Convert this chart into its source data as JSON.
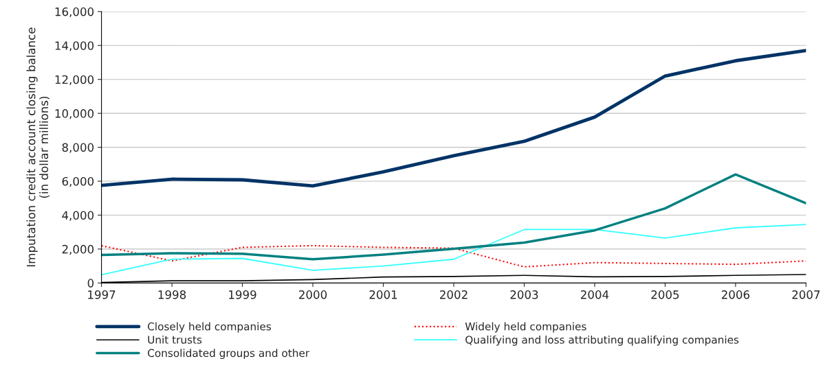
{
  "chart_data": {
    "type": "line",
    "ylabel": "Imputation credit account closing balance\n(in dollar millions)",
    "x": [
      1997,
      1998,
      1999,
      2000,
      2001,
      2002,
      2003,
      2004,
      2005,
      2006,
      2007
    ],
    "series": [
      {
        "name": "Closely held companies",
        "color": "#003366",
        "line_style": "solid",
        "values": [
          5750,
          6120,
          6080,
          5720,
          6550,
          7500,
          8350,
          9780,
          12200,
          13100,
          13700
        ]
      },
      {
        "name": "Widely held companies",
        "color": "#ff0000",
        "line_style": "dotted",
        "values": [
          2200,
          1300,
          2100,
          2200,
          2100,
          2050,
          950,
          1200,
          1150,
          1100,
          1300
        ]
      },
      {
        "name": "Unit trusts",
        "color": "#000000",
        "line_style": "solid",
        "values": [
          30,
          130,
          130,
          200,
          350,
          380,
          450,
          360,
          380,
          450,
          500
        ]
      },
      {
        "name": "Qualifying and loss attributing qualifying companies",
        "color": "#33ffff",
        "line_style": "solid",
        "values": [
          480,
          1400,
          1450,
          750,
          1000,
          1400,
          3150,
          3150,
          2650,
          3250,
          3450
        ]
      },
      {
        "name": "Consolidated groups and other",
        "color": "#008080",
        "line_style": "solid",
        "values": [
          1650,
          1750,
          1720,
          1400,
          1670,
          2020,
          2380,
          3100,
          4400,
          6400,
          4700
        ]
      }
    ],
    "xlim": [
      1997,
      2007
    ],
    "xticks": [
      1997,
      1998,
      1999,
      2000,
      2001,
      2002,
      2003,
      2004,
      2005,
      2006,
      2007
    ],
    "ylim": [
      0,
      16000
    ],
    "yticks": [
      {
        "value": 0,
        "label": "0"
      },
      {
        "value": 2000,
        "label": "2,000"
      },
      {
        "value": 4000,
        "label": "4,000"
      },
      {
        "value": 6000,
        "label": "6,000"
      },
      {
        "value": 8000,
        "label": "8,000"
      },
      {
        "value": 10000,
        "label": "10,000"
      },
      {
        "value": 12000,
        "label": "12,000"
      },
      {
        "value": 14000,
        "label": "14,000"
      },
      {
        "value": 16000,
        "label": "16,000"
      }
    ],
    "grid": "y",
    "legend": "bottom",
    "marker": "none"
  }
}
